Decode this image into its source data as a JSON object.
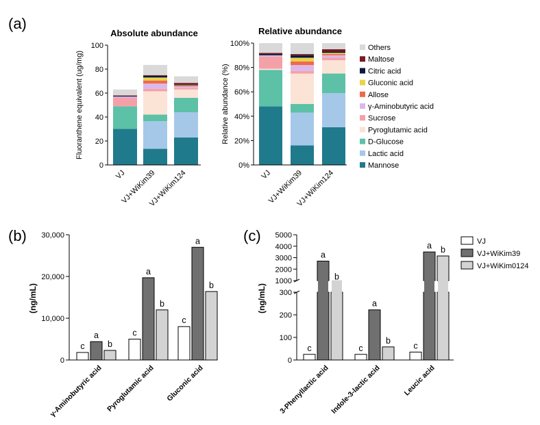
{
  "panels": {
    "a": "(a)",
    "b": "(b)",
    "c": "(c)"
  },
  "chart_data": [
    {
      "id": "abs",
      "type": "stacked-bar",
      "title": "Absolute abundance",
      "ylabel": "Fluoranthene equivalent (ug/mg)",
      "ylim": [
        0,
        100
      ],
      "yticks": [
        "0",
        "20",
        "40",
        "60",
        "80",
        "100"
      ],
      "categories": [
        "VJ",
        "VJ+WiKim39",
        "VJ+WiKim124"
      ],
      "series": [
        {
          "name": "Mannose",
          "color": "#1f7a8c",
          "values": [
            30,
            13.5,
            23
          ]
        },
        {
          "name": "Lactic acid",
          "color": "#a6c8e8",
          "values": [
            0,
            23,
            21
          ]
        },
        {
          "name": "D-Glucose",
          "color": "#5cc1a6",
          "values": [
            19,
            5.5,
            12
          ]
        },
        {
          "name": "Pyroglutamic acid",
          "color": "#fbe3d6",
          "values": [
            0,
            19.5,
            7
          ]
        },
        {
          "name": "Sucrose",
          "color": "#f4a0a8",
          "values": [
            7,
            2,
            1
          ]
        },
        {
          "name": "γ-Aminobutyric acid",
          "color": "#dcb8e8",
          "values": [
            1,
            4.5,
            1.5
          ]
        },
        {
          "name": "Allose",
          "color": "#ee6a4a",
          "values": [
            0,
            2.5,
            0.5
          ]
        },
        {
          "name": "Gluconic acid",
          "color": "#e8d44a",
          "values": [
            0,
            2.5,
            0.5
          ]
        },
        {
          "name": "Citric acid",
          "color": "#0b1a3e",
          "values": [
            0.5,
            1.5,
            0.5
          ]
        },
        {
          "name": "Maltose",
          "color": "#7a1a22",
          "values": [
            0.5,
            0.5,
            1.5
          ]
        },
        {
          "name": "Others",
          "color": "#d9d9d9",
          "values": [
            5,
            8.5,
            5.5
          ]
        }
      ]
    },
    {
      "id": "rel",
      "type": "stacked-bar",
      "title": "Relative abundance",
      "ylabel": "Relative abundance (%)",
      "ylim": [
        0,
        100
      ],
      "yticks": [
        "0%",
        "20%",
        "40%",
        "60%",
        "80%",
        "100%"
      ],
      "categories": [
        "VJ",
        "VJ+WiKim39",
        "VJ+WiKim124"
      ],
      "series": [
        {
          "name": "Mannose",
          "color": "#1f7a8c",
          "values": [
            48,
            16,
            31
          ]
        },
        {
          "name": "Lactic acid",
          "color": "#a6c8e8",
          "values": [
            0,
            27,
            28
          ]
        },
        {
          "name": "D-Glucose",
          "color": "#5cc1a6",
          "values": [
            30,
            7,
            16
          ]
        },
        {
          "name": "Pyroglutamic acid",
          "color": "#fbe3d6",
          "values": [
            1,
            25,
            11
          ]
        },
        {
          "name": "Sucrose",
          "color": "#f4a0a8",
          "values": [
            10,
            2,
            2
          ]
        },
        {
          "name": "γ-Aminobutyric acid",
          "color": "#dcb8e8",
          "values": [
            1,
            5,
            2
          ]
        },
        {
          "name": "Allose",
          "color": "#ee6a4a",
          "values": [
            0,
            3,
            1
          ]
        },
        {
          "name": "Gluconic acid",
          "color": "#e8d44a",
          "values": [
            0,
            3,
            1
          ]
        },
        {
          "name": "Citric acid",
          "color": "#0b1a3e",
          "values": [
            1,
            2,
            1
          ]
        },
        {
          "name": "Maltose",
          "color": "#7a1a22",
          "values": [
            1,
            1,
            2
          ]
        },
        {
          "name": "Others",
          "color": "#d9d9d9",
          "values": [
            8,
            9,
            5
          ]
        }
      ],
      "legend": [
        "Others",
        "Maltose",
        "Citric acid",
        "Gluconic acid",
        "Allose",
        "γ-Aminobutyric acid",
        "Sucrose",
        "Pyroglutamic acid",
        "D-Glucose",
        "Lactic acid",
        "Mannose"
      ]
    },
    {
      "id": "b",
      "type": "bar",
      "ylabel": "(ng/mL)",
      "ylim": [
        0,
        30000
      ],
      "yticks": [
        "0",
        "10,000",
        "20,000",
        "30,000"
      ],
      "categories": [
        "γ-Aminobutyric acid",
        "Pyroglutamic acid",
        "Gluconic acid"
      ],
      "series": [
        {
          "name": "VJ",
          "color": "#ffffff",
          "values": [
            1800,
            5000,
            8000
          ],
          "letters": [
            "c",
            "c",
            "c"
          ]
        },
        {
          "name": "VJ+WiKim39",
          "color": "#707070",
          "values": [
            4400,
            19700,
            27000
          ],
          "letters": [
            "a",
            "a",
            "a"
          ]
        },
        {
          "name": "VJ+WiKim0124",
          "color": "#d3d3d3",
          "values": [
            2300,
            12000,
            16400
          ],
          "letters": [
            "b",
            "b",
            "b"
          ]
        }
      ]
    },
    {
      "id": "c",
      "type": "bar",
      "ylabel": "(ng/mL)",
      "axis_break": [
        300,
        1000
      ],
      "yticks_low": [
        "0",
        "100",
        "200",
        "300"
      ],
      "yticks_high": [
        "1000",
        "2000",
        "3000",
        "4000",
        "5000"
      ],
      "categories": [
        "3-Phenyllactic acid",
        "Indole-3-lactic acid",
        "Leucic acid"
      ],
      "series": [
        {
          "name": "VJ",
          "color": "#ffffff",
          "values": [
            25,
            25,
            35
          ],
          "letters": [
            "c",
            "c",
            "c"
          ]
        },
        {
          "name": "VJ+WiKim39",
          "color": "#707070",
          "values": [
            2700,
            222,
            3500
          ],
          "letters": [
            "a",
            "a",
            "a"
          ]
        },
        {
          "name": "VJ+WiKim0124",
          "color": "#d3d3d3",
          "values": [
            800,
            58,
            3150
          ],
          "letters": [
            "b",
            "b",
            "b"
          ]
        }
      ]
    }
  ],
  "legend_bc": [
    "VJ",
    "VJ+WiKim39",
    "VJ+WiKim0124"
  ]
}
